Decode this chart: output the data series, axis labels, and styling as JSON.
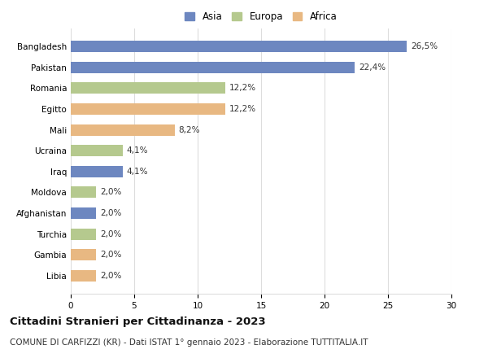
{
  "categories": [
    "Bangladesh",
    "Pakistan",
    "Romania",
    "Egitto",
    "Mali",
    "Ucraina",
    "Iraq",
    "Moldova",
    "Afghanistan",
    "Turchia",
    "Gambia",
    "Libia"
  ],
  "values": [
    26.5,
    22.4,
    12.2,
    12.2,
    8.2,
    4.1,
    4.1,
    2.0,
    2.0,
    2.0,
    2.0,
    2.0
  ],
  "labels": [
    "26,5%",
    "22,4%",
    "12,2%",
    "12,2%",
    "8,2%",
    "4,1%",
    "4,1%",
    "2,0%",
    "2,0%",
    "2,0%",
    "2,0%",
    "2,0%"
  ],
  "continent": [
    "Asia",
    "Asia",
    "Europa",
    "Africa",
    "Africa",
    "Europa",
    "Asia",
    "Europa",
    "Asia",
    "Europa",
    "Africa",
    "Africa"
  ],
  "colors": {
    "Asia": "#6d87c0",
    "Europa": "#b5c98e",
    "Africa": "#e8b882"
  },
  "legend_labels": [
    "Asia",
    "Europa",
    "Africa"
  ],
  "xlim": [
    0,
    30
  ],
  "xticks": [
    0,
    5,
    10,
    15,
    20,
    25,
    30
  ],
  "title": "Cittadini Stranieri per Cittadinanza - 2023",
  "subtitle": "COMUNE DI CARFIZZI (KR) - Dati ISTAT 1° gennaio 2023 - Elaborazione TUTTITALIA.IT",
  "title_fontsize": 9.5,
  "subtitle_fontsize": 7.5,
  "label_fontsize": 7.5,
  "tick_fontsize": 7.5,
  "legend_fontsize": 8.5,
  "bar_height": 0.55,
  "background_color": "#ffffff",
  "grid_color": "#dddddd"
}
